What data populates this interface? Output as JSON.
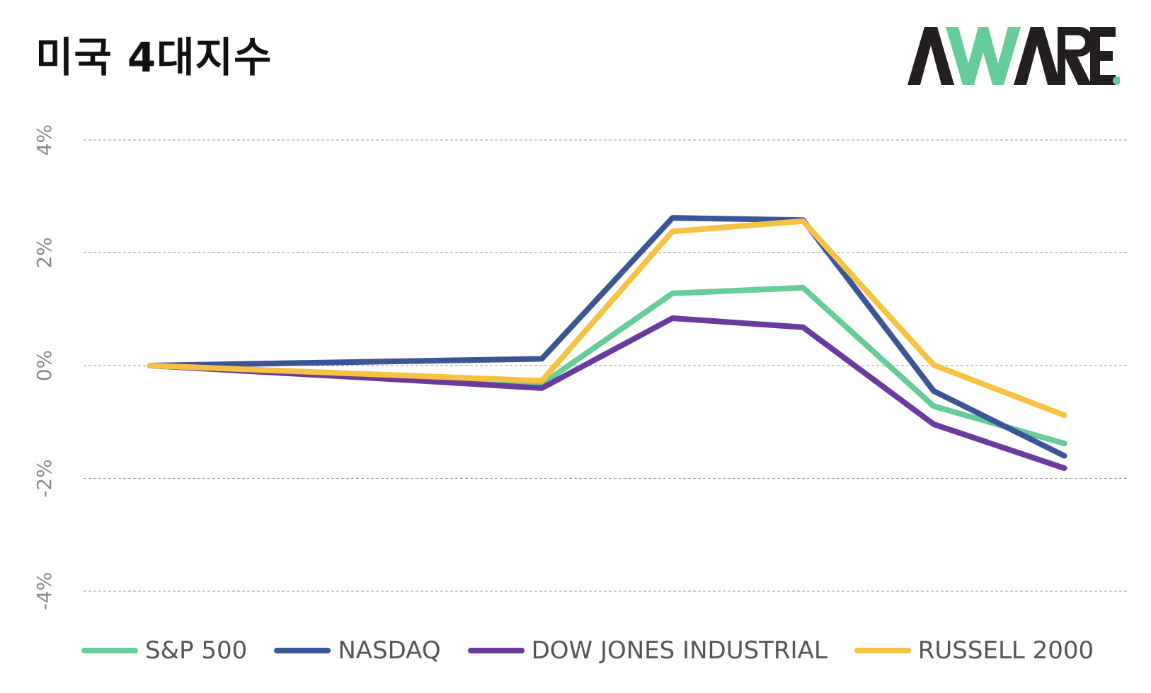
{
  "title": "미국 4대지수",
  "logo": {
    "text": "AWARE",
    "colors": {
      "dark": "#231f20",
      "accent": "#66cc99"
    }
  },
  "chart_data": {
    "type": "line",
    "title": "미국 4대지수",
    "xlabel": "",
    "ylabel": "",
    "ylim": [
      -4,
      4
    ],
    "yticks": [
      {
        "value": 4,
        "label": "4%"
      },
      {
        "value": 2,
        "label": "2%"
      },
      {
        "value": 0,
        "label": "0%"
      },
      {
        "value": -2,
        "label": "-2%"
      },
      {
        "value": -4,
        "label": "-4%"
      }
    ],
    "x": [
      1,
      2,
      3,
      4,
      5,
      6,
      7,
      8
    ],
    "grid": true,
    "legend_position": "bottom",
    "series": [
      {
        "name": "S&P 500",
        "color": "#66cc99",
        "values": [
          0.0,
          -0.1,
          -0.2,
          -0.33,
          1.28,
          1.38,
          -0.72,
          -1.38
        ]
      },
      {
        "name": "NASDAQ",
        "color": "#3b5596",
        "values": [
          0.0,
          0.04,
          0.08,
          0.12,
          2.62,
          2.58,
          -0.45,
          -1.6
        ]
      },
      {
        "name": "DOW JONES INDUSTRIAL",
        "color": "#6b3a9e",
        "values": [
          0.0,
          -0.13,
          -0.26,
          -0.4,
          0.84,
          0.68,
          -1.04,
          -1.82
        ]
      },
      {
        "name": "RUSSELL 2000",
        "color": "#f5c242",
        "values": [
          0.0,
          -0.09,
          -0.18,
          -0.27,
          2.38,
          2.56,
          0.01,
          -0.88
        ]
      }
    ]
  }
}
